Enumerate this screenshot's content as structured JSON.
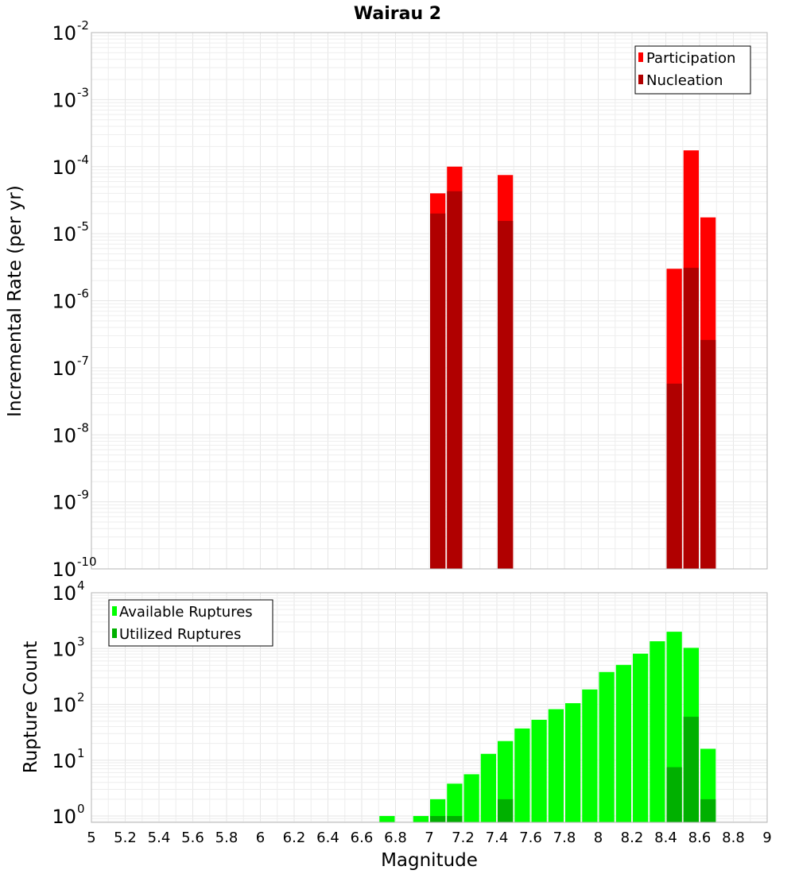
{
  "chart_data": [
    {
      "type": "bar",
      "title": "Wairau 2",
      "ylabel": "Incremental Rate (per yr)",
      "xlabel": "",
      "xlim": [
        5,
        9
      ],
      "ylim": [
        1e-10,
        0.01
      ],
      "yscale": "log",
      "grid": true,
      "legend_position": "top-right",
      "yticks": [
        {
          "base": "10",
          "exp": "-10"
        },
        {
          "base": "10",
          "exp": "-9"
        },
        {
          "base": "10",
          "exp": "-8"
        },
        {
          "base": "10",
          "exp": "-7"
        },
        {
          "base": "10",
          "exp": "-6"
        },
        {
          "base": "10",
          "exp": "-5"
        },
        {
          "base": "10",
          "exp": "-4"
        },
        {
          "base": "10",
          "exp": "-3"
        },
        {
          "base": "10",
          "exp": "-2"
        }
      ],
      "series": [
        {
          "name": "Participation",
          "color": "#ff0000",
          "points": [
            [
              7.05,
              4e-05
            ],
            [
              7.15,
              0.0001
            ],
            [
              7.45,
              7.5e-05
            ],
            [
              8.45,
              3e-06
            ],
            [
              8.55,
              0.000175
            ],
            [
              8.65,
              1.75e-05
            ]
          ]
        },
        {
          "name": "Nucleation",
          "color": "#b00000",
          "points": [
            [
              7.05,
              2e-05
            ],
            [
              7.15,
              4.3e-05
            ],
            [
              7.45,
              1.55e-05
            ],
            [
              8.45,
              5.8e-08
            ],
            [
              8.55,
              3.1e-06
            ],
            [
              8.65,
              2.6e-07
            ]
          ]
        }
      ]
    },
    {
      "type": "bar",
      "title": "",
      "ylabel": "Rupture Count",
      "xlabel": "Magnitude",
      "xlim": [
        5,
        9
      ],
      "ylim": [
        0.77,
        10000.0
      ],
      "yscale": "log",
      "grid": true,
      "legend_position": "top-left",
      "xticks": [
        "5",
        "5.2",
        "5.4",
        "5.6",
        "5.8",
        "6",
        "6.2",
        "6.4",
        "6.6",
        "6.8",
        "7",
        "7.2",
        "7.4",
        "7.6",
        "7.8",
        "8",
        "8.2",
        "8.4",
        "8.6",
        "8.8",
        "9"
      ],
      "yticks": [
        {
          "base": "10",
          "exp": "0"
        },
        {
          "base": "10",
          "exp": "1"
        },
        {
          "base": "10",
          "exp": "2"
        },
        {
          "base": "10",
          "exp": "3"
        },
        {
          "base": "10",
          "exp": "4"
        }
      ],
      "series": [
        {
          "name": "Available Ruptures",
          "color": "#00ff00",
          "points": [
            [
              6.75,
              1
            ],
            [
              6.95,
              1
            ],
            [
              7.05,
              2
            ],
            [
              7.15,
              3.8
            ],
            [
              7.25,
              5.6
            ],
            [
              7.35,
              13
            ],
            [
              7.45,
              22
            ],
            [
              7.55,
              37
            ],
            [
              7.65,
              53
            ],
            [
              7.75,
              82
            ],
            [
              7.85,
              105
            ],
            [
              7.95,
              185
            ],
            [
              8.05,
              380
            ],
            [
              8.15,
              510
            ],
            [
              8.25,
              810
            ],
            [
              8.35,
              1350
            ],
            [
              8.45,
              2000
            ],
            [
              8.55,
              1030
            ],
            [
              8.65,
              16
            ]
          ]
        },
        {
          "name": "Utilized Ruptures",
          "color": "#00b000",
          "points": [
            [
              7.05,
              1
            ],
            [
              7.15,
              1
            ],
            [
              7.45,
              2
            ],
            [
              8.45,
              7.5
            ],
            [
              8.55,
              60
            ],
            [
              8.65,
              2
            ]
          ]
        }
      ]
    }
  ]
}
